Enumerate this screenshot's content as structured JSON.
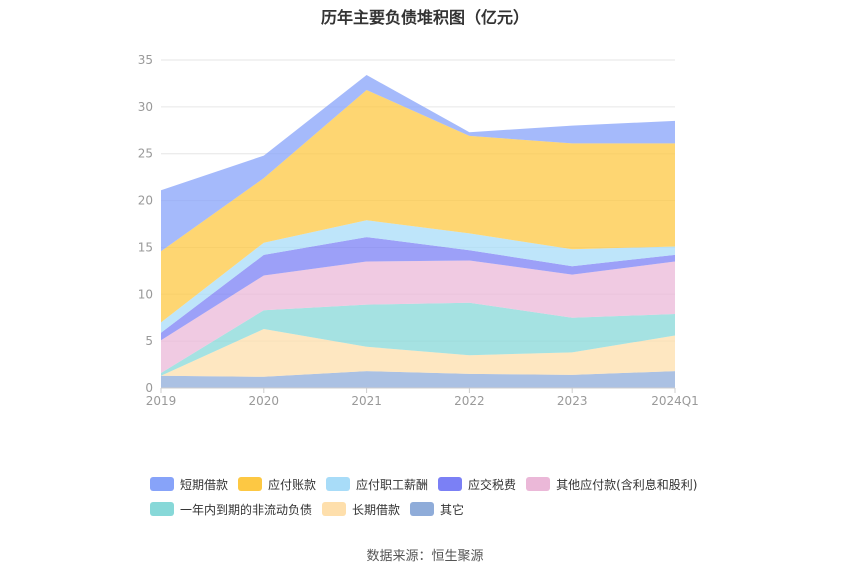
{
  "chart_data": {
    "type": "area",
    "stacked": true,
    "title": "历年主要负债堆积图（亿元）",
    "source": "数据来源：恒生聚源",
    "categories": [
      "2019",
      "2020",
      "2021",
      "2022",
      "2023",
      "2024Q1"
    ],
    "ylim": [
      0,
      35
    ],
    "yticks": [
      "0",
      "5",
      "10",
      "15",
      "20",
      "25",
      "30",
      "35"
    ],
    "grid": true,
    "legend_position": "bottom",
    "legend_rows": [
      [
        "短期借款",
        "应付账款",
        "应付职工薪酬",
        "应交税费",
        "其他应付款(含利息和股利)"
      ],
      [
        "一年内到期的非流动负债",
        "长期借款",
        "其它"
      ]
    ],
    "series": [
      {
        "name": "其它",
        "color": "#8facd9",
        "values": [
          1.3,
          1.2,
          1.8,
          1.5,
          1.4,
          1.8
        ]
      },
      {
        "name": "长期借款",
        "color": "#fedfac",
        "values": [
          0.0,
          5.1,
          2.6,
          2.0,
          2.4,
          3.8
        ]
      },
      {
        "name": "一年内到期的非流动负债",
        "color": "#87d8d8",
        "values": [
          0.3,
          2.0,
          4.5,
          5.6,
          3.7,
          2.3
        ]
      },
      {
        "name": "其他应付款(含利息和股利)",
        "color": "#ebb8d8",
        "values": [
          3.5,
          3.7,
          4.6,
          4.5,
          4.6,
          5.6
        ]
      },
      {
        "name": "应交税费",
        "color": "#7b80f5",
        "values": [
          0.8,
          2.2,
          2.6,
          1.1,
          0.9,
          0.7
        ]
      },
      {
        "name": "应付职工薪酬",
        "color": "#a8dcf8",
        "values": [
          1.1,
          1.3,
          1.8,
          1.8,
          1.8,
          0.9
        ]
      },
      {
        "name": "应付账款",
        "color": "#fdc843",
        "values": [
          7.6,
          6.9,
          13.9,
          10.4,
          11.3,
          11.0
        ]
      },
      {
        "name": "短期借款",
        "color": "#87a3f9",
        "values": [
          6.5,
          2.4,
          1.6,
          0.4,
          1.9,
          2.4
        ]
      }
    ]
  }
}
